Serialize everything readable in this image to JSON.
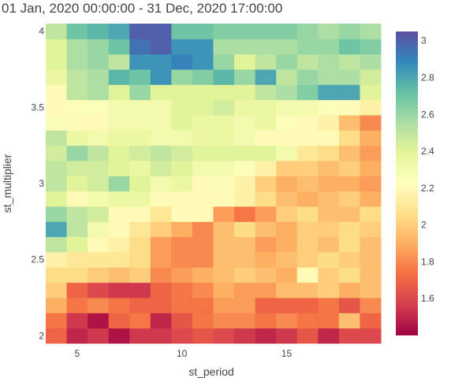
{
  "chart_data": {
    "type": "heatmap",
    "title": "01 Jan, 2020 00:00:00 - 31 Dec, 2020 17:00:00",
    "xlabel": "st_period",
    "ylabel": "st_multiplier",
    "x": [
      4,
      5,
      6,
      7,
      8,
      9,
      10,
      11,
      12,
      13,
      14,
      15,
      16,
      17,
      18,
      19
    ],
    "y": [
      2.0,
      2.1,
      2.2,
      2.3,
      2.4,
      2.5,
      2.6,
      2.7,
      2.8,
      2.9,
      3.0,
      3.1,
      3.2,
      3.3,
      3.4,
      3.5,
      3.6,
      3.7,
      3.8,
      3.9,
      4.0
    ],
    "xlim": [
      3.5,
      19.5
    ],
    "ylim": [
      1.95,
      4.05
    ],
    "x_ticks": [
      5,
      10,
      15
    ],
    "x_tick_labels": [
      "5",
      "10",
      "15"
    ],
    "y_ticks": [
      2,
      2.5,
      3,
      3.5,
      4
    ],
    "y_tick_labels": [
      "2",
      "2.5",
      "3",
      "3.5",
      "4"
    ],
    "z": [
      [
        1.7,
        1.5,
        1.55,
        1.45,
        1.55,
        1.55,
        1.6,
        1.65,
        1.6,
        1.55,
        1.5,
        1.55,
        1.65,
        1.5,
        1.6,
        1.6
      ],
      [
        1.75,
        1.55,
        1.45,
        1.7,
        1.75,
        1.5,
        1.65,
        1.75,
        1.8,
        1.8,
        1.75,
        1.8,
        1.75,
        1.75,
        1.95,
        1.7
      ],
      [
        1.9,
        1.75,
        1.8,
        1.75,
        1.7,
        1.7,
        1.75,
        1.75,
        1.85,
        1.85,
        1.7,
        1.7,
        1.7,
        1.75,
        1.65,
        1.8
      ],
      [
        2.0,
        1.7,
        1.6,
        1.55,
        1.55,
        1.7,
        1.75,
        1.8,
        1.9,
        1.85,
        1.85,
        1.95,
        1.95,
        2.0,
        1.9,
        1.95
      ],
      [
        2.05,
        2.05,
        2.0,
        1.95,
        2.0,
        1.8,
        1.85,
        1.9,
        1.95,
        2.0,
        1.95,
        1.9,
        2.2,
        2.0,
        2.05,
        1.95
      ],
      [
        2.15,
        2.1,
        2.1,
        2.1,
        2.05,
        1.85,
        1.8,
        1.8,
        1.95,
        1.95,
        1.9,
        1.95,
        2.0,
        2.05,
        2.0,
        1.95
      ],
      [
        2.5,
        2.4,
        2.2,
        2.15,
        2.05,
        1.85,
        1.8,
        1.8,
        1.95,
        1.95,
        1.85,
        1.9,
        2.0,
        1.95,
        2.05,
        1.95
      ],
      [
        2.8,
        2.5,
        2.3,
        2.2,
        2.1,
        2.0,
        1.9,
        1.8,
        1.95,
        2.05,
        1.95,
        1.9,
        2.0,
        2.0,
        2.05,
        2.0
      ],
      [
        2.6,
        2.5,
        2.45,
        2.2,
        2.2,
        2.1,
        2.2,
        2.2,
        1.85,
        1.75,
        1.85,
        2.0,
        2.05,
        1.95,
        1.95,
        2.05
      ],
      [
        2.4,
        2.2,
        2.3,
        2.35,
        2.35,
        2.2,
        2.2,
        2.2,
        2.2,
        2.15,
        2.05,
        1.95,
        1.9,
        1.95,
        2.0,
        1.9
      ],
      [
        2.5,
        2.4,
        2.45,
        2.6,
        2.4,
        2.3,
        2.35,
        2.2,
        2.25,
        2.15,
        2.0,
        1.9,
        1.95,
        1.9,
        1.9,
        1.85
      ],
      [
        2.5,
        2.45,
        2.45,
        2.4,
        2.35,
        2.45,
        2.4,
        2.3,
        2.3,
        2.25,
        2.15,
        2.0,
        2.0,
        1.95,
        2.0,
        1.9
      ],
      [
        2.45,
        2.6,
        2.5,
        2.4,
        2.45,
        2.5,
        2.45,
        2.4,
        2.4,
        2.4,
        2.4,
        2.3,
        2.1,
        2.05,
        1.95,
        1.85
      ],
      [
        2.5,
        2.35,
        2.3,
        2.35,
        2.35,
        2.3,
        2.3,
        2.35,
        2.35,
        2.3,
        2.2,
        2.2,
        2.2,
        2.2,
        2.05,
        1.9
      ],
      [
        2.25,
        2.2,
        2.2,
        2.3,
        2.3,
        2.3,
        2.4,
        2.35,
        2.35,
        2.3,
        2.35,
        2.25,
        2.2,
        2.15,
        1.95,
        1.8
      ],
      [
        2.2,
        2.25,
        2.25,
        2.3,
        2.3,
        2.3,
        2.4,
        2.4,
        2.45,
        2.35,
        2.35,
        2.3,
        2.3,
        2.25,
        2.2,
        2.15
      ],
      [
        2.2,
        2.5,
        2.55,
        2.4,
        2.6,
        2.4,
        2.4,
        2.4,
        2.4,
        2.4,
        2.5,
        2.55,
        2.65,
        2.8,
        2.8,
        2.4
      ],
      [
        2.35,
        2.5,
        2.55,
        2.75,
        2.7,
        2.85,
        2.6,
        2.65,
        2.75,
        2.6,
        2.8,
        2.5,
        2.6,
        2.55,
        2.55,
        2.45
      ],
      [
        2.4,
        2.55,
        2.6,
        2.5,
        2.85,
        2.85,
        2.9,
        2.85,
        2.6,
        2.4,
        2.5,
        2.6,
        2.5,
        2.55,
        2.5,
        2.55
      ],
      [
        2.4,
        2.55,
        2.6,
        2.7,
        2.95,
        3.0,
        2.85,
        2.85,
        2.55,
        2.55,
        2.55,
        2.55,
        2.6,
        2.6,
        2.7,
        2.65
      ],
      [
        2.5,
        2.7,
        2.75,
        2.8,
        3.0,
        3.0,
        2.7,
        2.7,
        2.65,
        2.65,
        2.65,
        2.65,
        2.6,
        2.55,
        2.6,
        2.55
      ]
    ],
    "zmin": 1.4,
    "zmax": 3.05,
    "colorscale_name": "Spectral",
    "colorscale": [
      [
        0.0,
        "#9e0142"
      ],
      [
        0.1,
        "#d53e4f"
      ],
      [
        0.2,
        "#f46d43"
      ],
      [
        0.3,
        "#fdae61"
      ],
      [
        0.4,
        "#fee08b"
      ],
      [
        0.5,
        "#ffffbf"
      ],
      [
        0.6,
        "#e6f598"
      ],
      [
        0.7,
        "#abdda4"
      ],
      [
        0.8,
        "#66c2a5"
      ],
      [
        0.9,
        "#3288bd"
      ],
      [
        1.0,
        "#5e4fa2"
      ]
    ],
    "colorbar_ticks": [
      1.6,
      1.8,
      2,
      2.2,
      2.4,
      2.6,
      2.8,
      3
    ],
    "colorbar_tick_labels": [
      "1.6",
      "1.8",
      "2",
      "2.2",
      "2.4",
      "2.6",
      "2.8",
      "3"
    ],
    "grid": false,
    "legend": "colorbar-right"
  }
}
